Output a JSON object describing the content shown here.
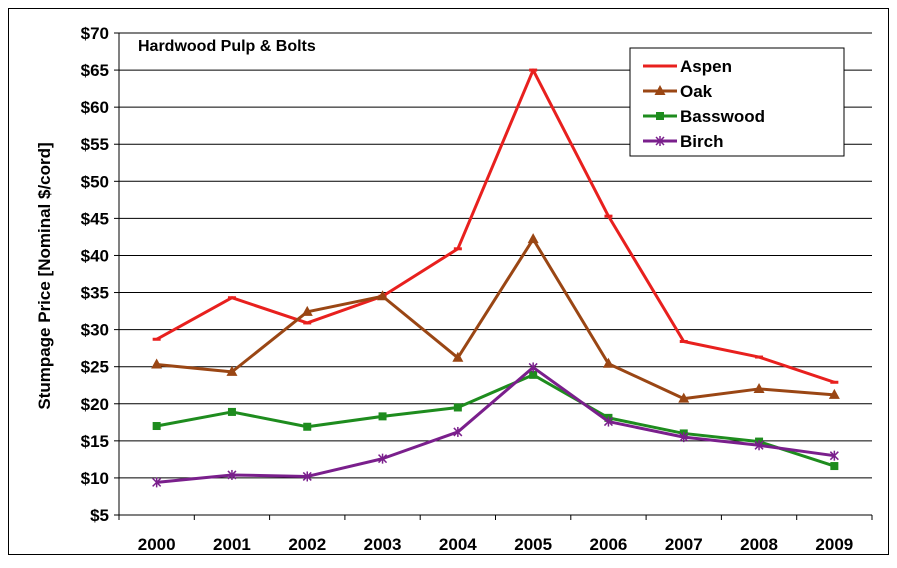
{
  "chart_data": {
    "type": "line",
    "title": "Hardwood Pulp & Bolts",
    "xlabel": "",
    "ylabel": "Stumpage Price [Nominal $/cord]",
    "x": [
      "2000",
      "2001",
      "2002",
      "2003",
      "2004",
      "2005",
      "2006",
      "2007",
      "2008",
      "2009"
    ],
    "ylim": [
      5,
      70
    ],
    "yticks": [
      5,
      10,
      15,
      20,
      25,
      30,
      35,
      40,
      45,
      50,
      55,
      60,
      65,
      70
    ],
    "ytick_labels": [
      "$5",
      "$10",
      "$15",
      "$20",
      "$25",
      "$30",
      "$35",
      "$40",
      "$45",
      "$50",
      "$55",
      "$60",
      "$65",
      "$70"
    ],
    "grid": true,
    "legend_position": "top-right",
    "series": [
      {
        "name": "Aspen",
        "color": "#e8201e",
        "marker": "dash",
        "values": [
          28.7,
          34.3,
          30.9,
          34.5,
          40.9,
          65.0,
          45.3,
          28.4,
          26.3,
          22.9
        ]
      },
      {
        "name": "Oak",
        "color": "#9a4614",
        "marker": "triangle",
        "values": [
          25.3,
          24.3,
          32.4,
          34.5,
          26.2,
          42.2,
          25.4,
          20.7,
          22.0,
          21.2
        ]
      },
      {
        "name": "Basswood",
        "color": "#1e8c1e",
        "marker": "square",
        "values": [
          17.0,
          18.9,
          16.9,
          18.3,
          19.5,
          23.9,
          18.1,
          16.0,
          14.9,
          11.6
        ]
      },
      {
        "name": "Birch",
        "color": "#7a1f8c",
        "marker": "star",
        "values": [
          9.4,
          10.4,
          10.2,
          12.6,
          16.2,
          24.9,
          17.6,
          15.5,
          14.4,
          13.0
        ]
      }
    ]
  }
}
